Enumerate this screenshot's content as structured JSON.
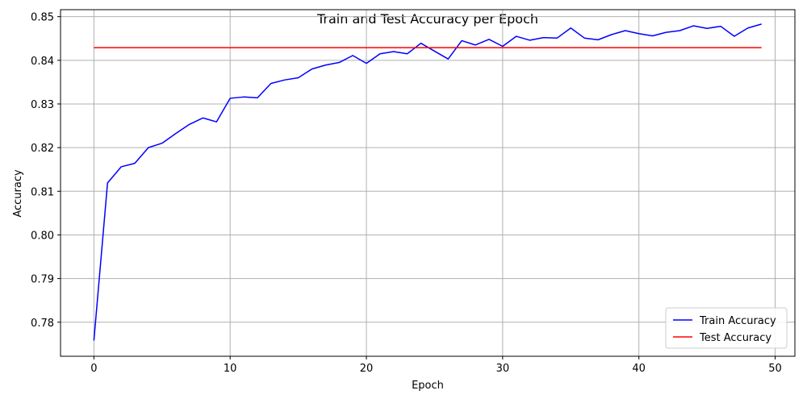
{
  "chart_data": {
    "type": "line",
    "title": "Train and Test Accuracy per Epoch",
    "xlabel": "Epoch",
    "ylabel": "Accuracy",
    "xlim": [
      -2.45,
      51.45
    ],
    "ylim": [
      0.7722,
      0.8516
    ],
    "xticks": [
      0,
      10,
      20,
      30,
      40,
      50
    ],
    "yticks": [
      0.78,
      0.79,
      0.8,
      0.81,
      0.82,
      0.83,
      0.84,
      0.85
    ],
    "ytick_labels": [
      "0.78",
      "0.79",
      "0.80",
      "0.81",
      "0.82",
      "0.83",
      "0.84",
      "0.85"
    ],
    "grid": true,
    "legend_position": "lower-right",
    "x": [
      0,
      1,
      2,
      3,
      4,
      5,
      6,
      7,
      8,
      9,
      10,
      11,
      12,
      13,
      14,
      15,
      16,
      17,
      18,
      19,
      20,
      21,
      22,
      23,
      24,
      25,
      26,
      27,
      28,
      29,
      30,
      31,
      32,
      33,
      34,
      35,
      36,
      37,
      38,
      39,
      40,
      41,
      42,
      43,
      44,
      45,
      46,
      47,
      48,
      49
    ],
    "series": [
      {
        "name": "Train Accuracy",
        "color": "#0000ff",
        "values": [
          0.7758,
          0.8119,
          0.8156,
          0.8164,
          0.82,
          0.821,
          0.8232,
          0.8253,
          0.8268,
          0.8259,
          0.8313,
          0.8316,
          0.8314,
          0.8347,
          0.8355,
          0.836,
          0.838,
          0.8389,
          0.8395,
          0.8411,
          0.8393,
          0.8415,
          0.842,
          0.8415,
          0.8439,
          0.8421,
          0.8403,
          0.8445,
          0.8435,
          0.8448,
          0.8432,
          0.8455,
          0.8446,
          0.8452,
          0.8451,
          0.8474,
          0.8451,
          0.8447,
          0.8459,
          0.8468,
          0.8461,
          0.8456,
          0.8464,
          0.8468,
          0.8479,
          0.8473,
          0.8478,
          0.8455,
          0.8474,
          0.8483
        ]
      },
      {
        "name": "Test Accuracy",
        "color": "#ff0000",
        "values": [
          0.8429,
          0.8429,
          0.8429,
          0.8429,
          0.8429,
          0.8429,
          0.8429,
          0.8429,
          0.8429,
          0.8429,
          0.8429,
          0.8429,
          0.8429,
          0.8429,
          0.8429,
          0.8429,
          0.8429,
          0.8429,
          0.8429,
          0.8429,
          0.8429,
          0.8429,
          0.8429,
          0.8429,
          0.8429,
          0.8429,
          0.8429,
          0.8429,
          0.8429,
          0.8429,
          0.8429,
          0.8429,
          0.8429,
          0.8429,
          0.8429,
          0.8429,
          0.8429,
          0.8429,
          0.8429,
          0.8429,
          0.8429,
          0.8429,
          0.8429,
          0.8429,
          0.8429,
          0.8429,
          0.8429,
          0.8429,
          0.8429,
          0.8429
        ]
      }
    ]
  }
}
